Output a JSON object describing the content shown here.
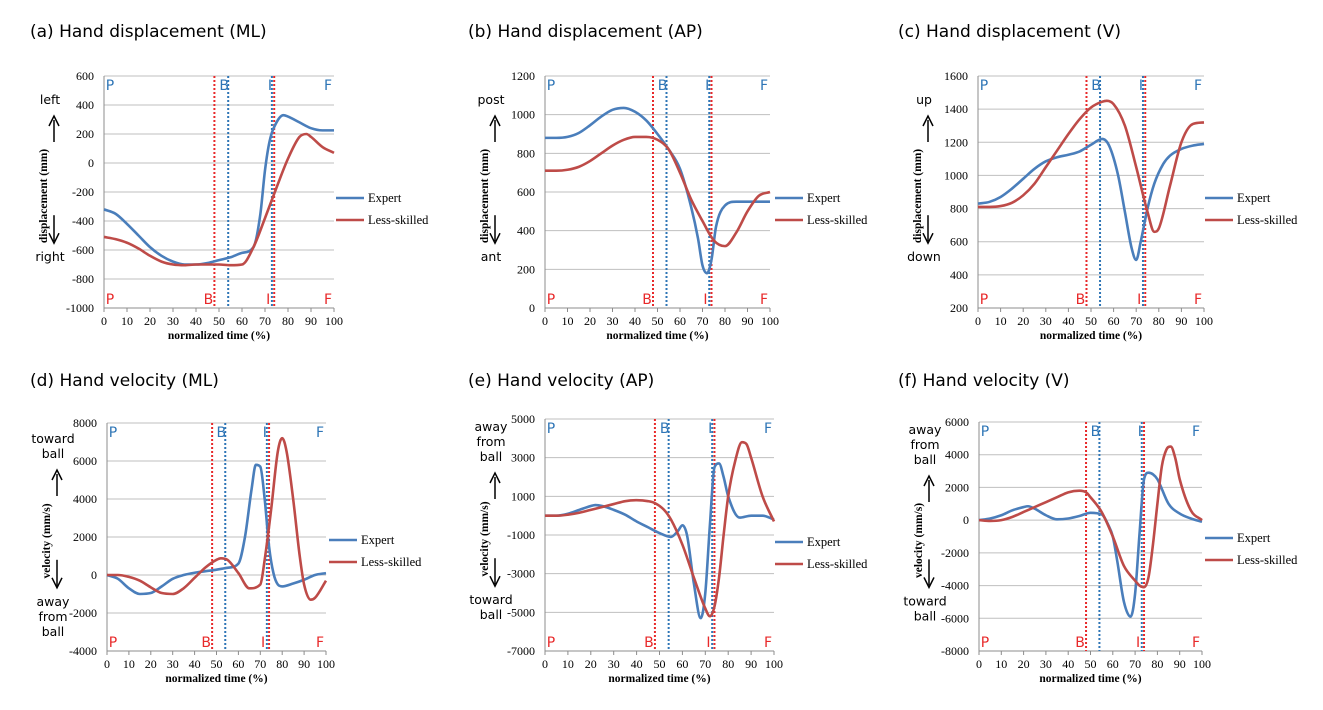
{
  "colors": {
    "expert": "#4a7ebb",
    "less_skilled": "#be4b48",
    "phase_blue": "#2e75b6",
    "phase_red": "#e8292a"
  },
  "legend": {
    "expert": "Expert",
    "less_skilled": "Less-skilled"
  },
  "phase_labels": [
    "P",
    "B",
    "I",
    "F"
  ],
  "chart_data": [
    {
      "type": "line",
      "title": "(a) Hand displacement (ML)",
      "xlabel": "normalized time (%)",
      "ylabel": "displacement (mm)",
      "xlim": [
        0,
        100
      ],
      "ylim": [
        -1000,
        600
      ],
      "xticks": [
        0,
        10,
        20,
        30,
        40,
        50,
        60,
        70,
        80,
        90,
        100
      ],
      "yticks": [
        -1000,
        -800,
        -600,
        -400,
        -200,
        0,
        200,
        400,
        600
      ],
      "direction_up": "left",
      "direction_down": "right",
      "phase_lines": {
        "expert": [
          54,
          73
        ],
        "less_skilled": [
          48,
          74
        ]
      },
      "series": [
        {
          "name": "Expert",
          "x": [
            0,
            5,
            10,
            15,
            20,
            25,
            30,
            35,
            40,
            45,
            50,
            55,
            60,
            65,
            68,
            70,
            72,
            75,
            78,
            80,
            85,
            90,
            95,
            100
          ],
          "values": [
            -320,
            -350,
            -420,
            -500,
            -580,
            -640,
            -680,
            -700,
            -700,
            -690,
            -670,
            -650,
            -620,
            -580,
            -350,
            -50,
            150,
            280,
            330,
            320,
            280,
            240,
            225,
            225
          ]
        },
        {
          "name": "Less-skilled",
          "x": [
            0,
            5,
            10,
            15,
            20,
            25,
            30,
            35,
            40,
            45,
            50,
            55,
            60,
            65,
            70,
            75,
            80,
            85,
            88,
            90,
            95,
            100
          ],
          "values": [
            -510,
            -525,
            -550,
            -590,
            -640,
            -680,
            -700,
            -705,
            -700,
            -700,
            -700,
            -705,
            -700,
            -580,
            -380,
            -170,
            30,
            180,
            200,
            180,
            110,
            70
          ]
        }
      ]
    },
    {
      "type": "line",
      "title": "(b) Hand displacement (AP)",
      "xlabel": "normalized time (%)",
      "ylabel": "displacement (mm)",
      "xlim": [
        0,
        100
      ],
      "ylim": [
        0,
        1200
      ],
      "xticks": [
        0,
        10,
        20,
        30,
        40,
        50,
        60,
        70,
        80,
        90,
        100
      ],
      "yticks": [
        0,
        200,
        400,
        600,
        800,
        1000,
        1200
      ],
      "direction_up": "post",
      "direction_down": "ant",
      "phase_lines": {
        "expert": [
          54,
          73
        ],
        "less_skilled": [
          48,
          74
        ]
      },
      "series": [
        {
          "name": "Expert",
          "x": [
            0,
            5,
            10,
            15,
            20,
            25,
            30,
            35,
            40,
            45,
            50,
            55,
            60,
            65,
            68,
            70,
            72,
            74,
            76,
            80,
            85,
            90,
            95,
            100
          ],
          "values": [
            880,
            880,
            885,
            905,
            945,
            990,
            1025,
            1035,
            1015,
            970,
            900,
            820,
            720,
            520,
            360,
            220,
            180,
            250,
            420,
            530,
            550,
            550,
            550,
            550
          ]
        },
        {
          "name": "Less-skilled",
          "x": [
            0,
            5,
            10,
            15,
            20,
            25,
            30,
            35,
            40,
            45,
            50,
            55,
            60,
            65,
            70,
            75,
            80,
            85,
            90,
            95,
            100
          ],
          "values": [
            710,
            710,
            715,
            730,
            760,
            800,
            840,
            870,
            885,
            885,
            870,
            820,
            700,
            560,
            450,
            350,
            320,
            390,
            500,
            580,
            600
          ]
        }
      ]
    },
    {
      "type": "line",
      "title": "(c) Hand displacement (V)",
      "xlabel": "normalized time (%)",
      "ylabel": "displacement (mm)",
      "xlim": [
        0,
        100
      ],
      "ylim": [
        200,
        1600
      ],
      "xticks": [
        0,
        10,
        20,
        30,
        40,
        50,
        60,
        70,
        80,
        90,
        100
      ],
      "yticks": [
        200,
        400,
        600,
        800,
        1000,
        1200,
        1400,
        1600
      ],
      "direction_up": "up",
      "direction_down": "down",
      "phase_lines": {
        "expert": [
          54,
          73
        ],
        "less_skilled": [
          48,
          74
        ]
      },
      "series": [
        {
          "name": "Expert",
          "x": [
            0,
            5,
            10,
            15,
            20,
            25,
            30,
            35,
            40,
            45,
            50,
            55,
            58,
            62,
            65,
            68,
            70,
            72,
            75,
            78,
            82,
            85,
            90,
            95,
            100
          ],
          "values": [
            830,
            840,
            870,
            920,
            980,
            1040,
            1085,
            1110,
            1125,
            1145,
            1185,
            1220,
            1180,
            1000,
            780,
            560,
            490,
            600,
            800,
            950,
            1070,
            1120,
            1160,
            1180,
            1190
          ]
        },
        {
          "name": "Less-skilled",
          "x": [
            0,
            5,
            10,
            15,
            20,
            25,
            30,
            35,
            40,
            45,
            50,
            55,
            57,
            60,
            65,
            70,
            75,
            78,
            80,
            85,
            90,
            95,
            100
          ],
          "values": [
            810,
            810,
            815,
            835,
            880,
            950,
            1050,
            1150,
            1250,
            1340,
            1410,
            1445,
            1450,
            1430,
            1300,
            1050,
            780,
            660,
            680,
            940,
            1200,
            1310,
            1320
          ]
        }
      ]
    },
    {
      "type": "line",
      "title": "(d) Hand velocity (ML)",
      "xlabel": "normalized time (%)",
      "ylabel": "velocity (mm/s)",
      "xlim": [
        0,
        100
      ],
      "ylim": [
        -4000,
        8000
      ],
      "xticks": [
        0,
        10,
        20,
        30,
        40,
        50,
        60,
        70,
        80,
        90,
        100
      ],
      "yticks": [
        -4000,
        -2000,
        0,
        2000,
        4000,
        6000,
        8000
      ],
      "direction_up": "toward ball",
      "direction_down": "away from ball",
      "phase_lines": {
        "expert": [
          54,
          73
        ],
        "less_skilled": [
          48,
          74
        ]
      },
      "series": [
        {
          "name": "Expert",
          "x": [
            0,
            5,
            10,
            15,
            20,
            25,
            30,
            35,
            40,
            45,
            50,
            55,
            60,
            63,
            66,
            68,
            70,
            72,
            74,
            76,
            78,
            80,
            85,
            90,
            95,
            100
          ],
          "values": [
            0,
            -200,
            -700,
            -1000,
            -950,
            -600,
            -200,
            0,
            120,
            200,
            280,
            380,
            600,
            2000,
            4500,
            5800,
            5700,
            4000,
            1500,
            100,
            -500,
            -600,
            -450,
            -250,
            0,
            100
          ]
        },
        {
          "name": "Less-skilled",
          "x": [
            0,
            5,
            10,
            15,
            20,
            25,
            30,
            35,
            40,
            45,
            50,
            52,
            55,
            60,
            65,
            70,
            72,
            75,
            78,
            80,
            82,
            85,
            88,
            90,
            93,
            95,
            100
          ],
          "values": [
            0,
            0,
            -100,
            -300,
            -650,
            -950,
            -1000,
            -700,
            -150,
            400,
            800,
            880,
            800,
            100,
            -700,
            -500,
            800,
            3500,
            6500,
            7200,
            6500,
            4000,
            1000,
            -500,
            -1300,
            -1200,
            -300
          ]
        }
      ]
    },
    {
      "type": "line",
      "title": "(e) Hand velocity (AP)",
      "xlabel": "normalized time (%)",
      "ylabel": "velocity (mm/s)",
      "xlim": [
        0,
        100
      ],
      "ylim": [
        -7000,
        5000
      ],
      "xticks": [
        0,
        10,
        20,
        30,
        40,
        50,
        60,
        70,
        80,
        90,
        100
      ],
      "yticks": [
        -7000,
        -5000,
        -3000,
        -1000,
        1000,
        3000,
        5000
      ],
      "direction_up": "away from ball",
      "direction_down": "toward ball",
      "phase_lines": {
        "expert": [
          54,
          73
        ],
        "less_skilled": [
          48,
          74
        ]
      },
      "series": [
        {
          "name": "Expert",
          "x": [
            0,
            5,
            10,
            15,
            20,
            22,
            25,
            30,
            35,
            40,
            45,
            50,
            55,
            58,
            60,
            62,
            65,
            68,
            70,
            72,
            74,
            76,
            78,
            80,
            85,
            90,
            95,
            100
          ],
          "values": [
            0,
            0,
            100,
            300,
            500,
            550,
            500,
            300,
            50,
            -300,
            -600,
            -900,
            -1100,
            -800,
            -500,
            -1000,
            -3500,
            -5300,
            -4000,
            -500,
            2500,
            2700,
            2000,
            1000,
            -100,
            0,
            0,
            -200
          ]
        },
        {
          "name": "Less-skilled",
          "x": [
            0,
            5,
            10,
            15,
            20,
            25,
            30,
            35,
            40,
            45,
            48,
            52,
            55,
            60,
            65,
            70,
            72,
            74,
            76,
            78,
            80,
            83,
            86,
            88,
            90,
            95,
            100
          ],
          "values": [
            0,
            0,
            50,
            150,
            300,
            450,
            600,
            750,
            800,
            750,
            650,
            300,
            -200,
            -1500,
            -3200,
            -4800,
            -5200,
            -4700,
            -3200,
            -1000,
            1000,
            2800,
            3800,
            3700,
            3000,
            1000,
            -300
          ]
        }
      ]
    },
    {
      "type": "line",
      "title": "(f) Hand velocity (V)",
      "xlabel": "normalized time (%)",
      "ylabel": "velocity (mm/s)",
      "xlim": [
        0,
        100
      ],
      "ylim": [
        -8000,
        6000
      ],
      "xticks": [
        0,
        10,
        20,
        30,
        40,
        50,
        60,
        70,
        80,
        90,
        100
      ],
      "yticks": [
        -8000,
        -6000,
        -4000,
        -2000,
        0,
        2000,
        4000,
        6000
      ],
      "direction_up": "away from ball",
      "direction_down": "toward ball",
      "phase_lines": {
        "expert": [
          54,
          73
        ],
        "less_skilled": [
          48,
          74
        ]
      },
      "series": [
        {
          "name": "Expert",
          "x": [
            0,
            5,
            10,
            15,
            20,
            22,
            25,
            30,
            35,
            40,
            45,
            50,
            55,
            58,
            60,
            62,
            65,
            68,
            70,
            72,
            74,
            76,
            78,
            80,
            85,
            90,
            95,
            100
          ],
          "values": [
            0,
            100,
            300,
            600,
            800,
            850,
            700,
            300,
            50,
            100,
            250,
            450,
            350,
            -300,
            -1000,
            -2500,
            -5000,
            -5900,
            -4500,
            -800,
            2500,
            2900,
            2800,
            2500,
            1000,
            400,
            100,
            -100
          ]
        },
        {
          "name": "Less-skilled",
          "x": [
            0,
            5,
            10,
            15,
            20,
            25,
            30,
            35,
            40,
            45,
            48,
            50,
            55,
            60,
            65,
            70,
            72,
            74,
            76,
            78,
            80,
            82,
            84,
            86,
            88,
            90,
            95,
            100
          ],
          "values": [
            0,
            -50,
            0,
            200,
            500,
            800,
            1100,
            1400,
            1700,
            1800,
            1700,
            1400,
            500,
            -1000,
            -2800,
            -3700,
            -4000,
            -4100,
            -3500,
            -1500,
            1000,
            3300,
            4300,
            4500,
            3800,
            2500,
            600,
            0
          ]
        }
      ]
    }
  ]
}
